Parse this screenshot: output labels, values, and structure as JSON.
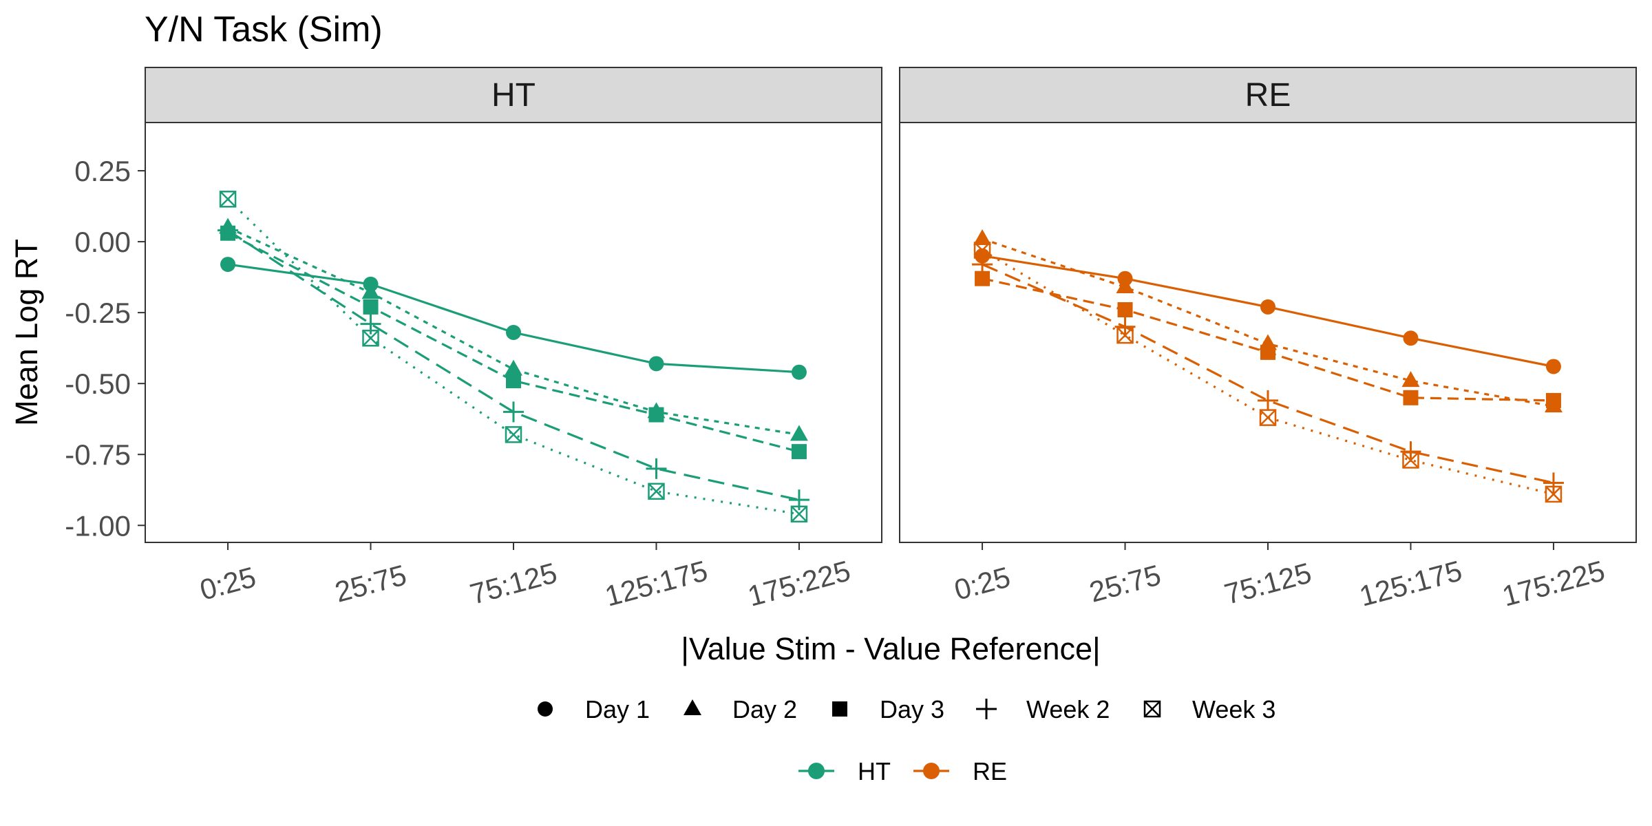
{
  "chart_data": {
    "type": "line",
    "title": "Y/N Task (Sim)",
    "xlabel": "|Value Stim - Value Reference|",
    "ylabel": "Mean Log RT",
    "categories": [
      "0:25",
      "25:75",
      "75:125",
      "125:175",
      "175:225"
    ],
    "ylim": [
      -1.06,
      0.42
    ],
    "yticks": [
      0.25,
      0.0,
      -0.25,
      -0.5,
      -0.75,
      -1.0
    ],
    "ytick_labels": [
      "0.25",
      "0.00",
      "-0.25",
      "-0.50",
      "-0.75",
      "-1.00"
    ],
    "grid": false,
    "legend_position": "bottom",
    "shape_legend": [
      "Day 1",
      "Day 2",
      "Day 3",
      "Week 2",
      "Week 3"
    ],
    "color_legend": [
      "HT",
      "RE"
    ],
    "colors": {
      "HT": "#1b9e77",
      "RE": "#d95f02"
    },
    "panels": [
      {
        "label": "HT",
        "color": "#1b9e77",
        "series": [
          {
            "name": "Day 1",
            "shape": "circle",
            "line": "solid",
            "values": [
              -0.08,
              -0.15,
              -0.32,
              -0.43,
              -0.46
            ]
          },
          {
            "name": "Day 2",
            "shape": "triangle",
            "line": "dotted-short",
            "values": [
              0.05,
              -0.18,
              -0.45,
              -0.6,
              -0.68
            ]
          },
          {
            "name": "Day 3",
            "shape": "square",
            "line": "dashed-short",
            "values": [
              0.03,
              -0.23,
              -0.49,
              -0.61,
              -0.74
            ]
          },
          {
            "name": "Week 2",
            "shape": "plus",
            "line": "dashed-long",
            "values": [
              0.04,
              -0.29,
              -0.6,
              -0.8,
              -0.91
            ]
          },
          {
            "name": "Week 3",
            "shape": "boxx",
            "line": "dotted",
            "values": [
              0.15,
              -0.34,
              -0.68,
              -0.88,
              -0.96
            ]
          }
        ]
      },
      {
        "label": "RE",
        "color": "#d95f02",
        "series": [
          {
            "name": "Day 1",
            "shape": "circle",
            "line": "solid",
            "values": [
              -0.05,
              -0.13,
              -0.23,
              -0.34,
              -0.44
            ]
          },
          {
            "name": "Day 2",
            "shape": "triangle",
            "line": "dotted-short",
            "values": [
              0.01,
              -0.16,
              -0.36,
              -0.49,
              -0.58
            ]
          },
          {
            "name": "Day 3",
            "shape": "square",
            "line": "dashed-short",
            "values": [
              -0.13,
              -0.24,
              -0.39,
              -0.55,
              -0.56
            ]
          },
          {
            "name": "Week 2",
            "shape": "plus",
            "line": "dashed-long",
            "values": [
              -0.08,
              -0.3,
              -0.56,
              -0.74,
              -0.85
            ]
          },
          {
            "name": "Week 3",
            "shape": "boxx",
            "line": "dotted",
            "values": [
              -0.03,
              -0.33,
              -0.62,
              -0.77,
              -0.89
            ]
          }
        ]
      }
    ]
  }
}
